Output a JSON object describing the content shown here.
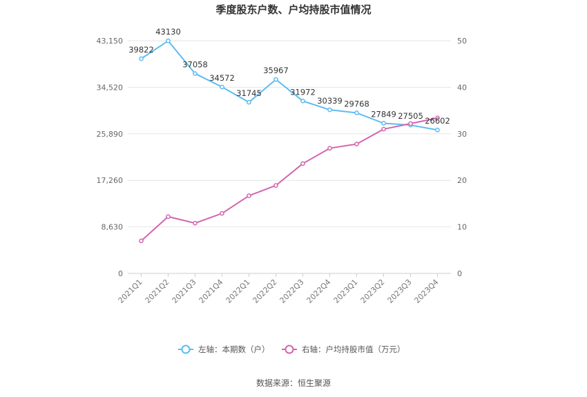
{
  "chart_data": {
    "type": "line",
    "title": "季度股东户数、户均持股市值情况",
    "categories": [
      "2021Q1",
      "2021Q2",
      "2021Q3",
      "2021Q4",
      "2022Q1",
      "2022Q2",
      "2022Q3",
      "2022Q4",
      "2023Q1",
      "2023Q2",
      "2023Q3",
      "2023Q4"
    ],
    "left_axis": {
      "ticks": [
        "0",
        "8,630",
        "17,260",
        "25,890",
        "34,520",
        "43,150"
      ],
      "ylim": [
        0,
        43150
      ]
    },
    "right_axis": {
      "ticks": [
        "0",
        "10",
        "20",
        "30",
        "40",
        "50"
      ],
      "ylim": [
        0,
        50
      ]
    },
    "series": [
      {
        "name": "左轴：本期数（户）",
        "axis": "left",
        "color": "#5bbcf0",
        "values": [
          39822,
          43130,
          37058,
          34572,
          31745,
          35967,
          31972,
          30339,
          29768,
          27849,
          27505,
          26602
        ],
        "labels": [
          "39822",
          "43130",
          "37058",
          "34572",
          "31745",
          "35967",
          "31972",
          "30339",
          "29768",
          "27849",
          "27505",
          "26602"
        ]
      },
      {
        "name": "右轴：户均持股市值（万元）",
        "axis": "right",
        "color": "#d264b0",
        "values": [
          7.0,
          12.2,
          10.8,
          12.9,
          16.7,
          18.9,
          23.6,
          26.9,
          27.8,
          31.0,
          32.2,
          33.4
        ]
      }
    ],
    "grid": true,
    "legend_position": "bottom"
  },
  "source_text": "数据来源：恒生聚源"
}
